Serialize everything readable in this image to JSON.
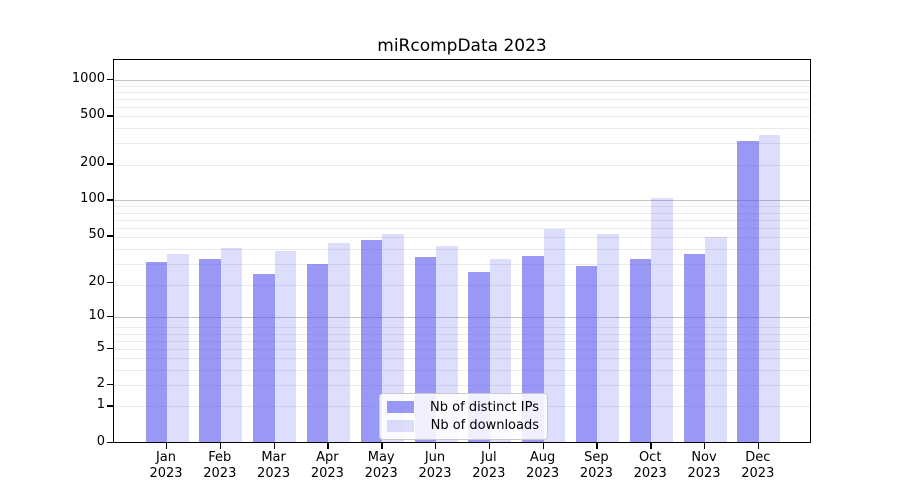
{
  "chart_data": {
    "type": "bar",
    "title": "miRcompData 2023",
    "categories": [
      "Jan",
      "Feb",
      "Mar",
      "Apr",
      "May",
      "Jun",
      "Jul",
      "Aug",
      "Sep",
      "Oct",
      "Nov",
      "Dec"
    ],
    "category_year": "2023",
    "series": [
      {
        "name": "Nb of distinct IPs",
        "color": "#5555ee",
        "alpha": 0.6,
        "values": [
          29,
          31,
          23,
          28,
          45,
          32,
          24,
          33,
          27,
          31,
          34,
          300
        ]
      },
      {
        "name": "Nb of downloads",
        "color": "#5555ee",
        "alpha": 0.2,
        "values": [
          34,
          38,
          36,
          42,
          50,
          40,
          31,
          55,
          50,
          100,
          47,
          335
        ]
      }
    ],
    "y_ticks": [
      0,
      1,
      2,
      5,
      10,
      20,
      50,
      100,
      200,
      500,
      1000
    ],
    "y_scale": "log10(1+x)",
    "ylim": [
      0,
      1450
    ],
    "grid": "horizontal-log-minor-and-major",
    "legend_position": "bottom-center-inside"
  },
  "colors": {
    "background": "#ffffff",
    "axis": "#000000",
    "major_grid": "#c3c3c3",
    "minor_grid": "#eaeaea",
    "legend_border": "#c9c9c9"
  }
}
